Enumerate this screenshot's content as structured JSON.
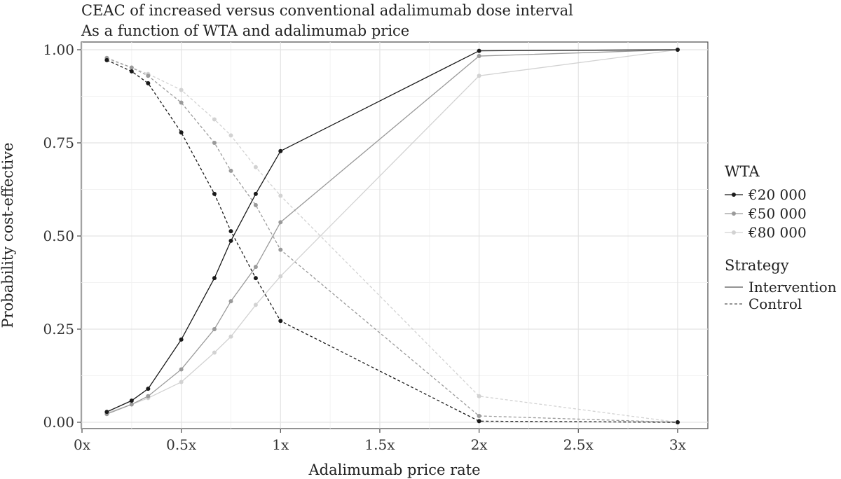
{
  "chart_data": {
    "type": "line",
    "title": "CEAC of increased versus conventional adalimumab dose interval",
    "subtitle": "As a function of WTA and adalimumab price",
    "xlabel": "Adalimumab price rate",
    "ylabel": "Probability cost-effective",
    "xlim": [
      0,
      3.15
    ],
    "ylim": [
      0,
      1
    ],
    "x_ticks": [
      {
        "value": 0,
        "label": "0x"
      },
      {
        "value": 0.5,
        "label": "0.5x"
      },
      {
        "value": 1,
        "label": "1x"
      },
      {
        "value": 1.5,
        "label": "1.5x"
      },
      {
        "value": 2,
        "label": "2x"
      },
      {
        "value": 2.5,
        "label": "2.5x"
      },
      {
        "value": 3,
        "label": "3x"
      }
    ],
    "y_ticks": [
      {
        "value": 0,
        "label": "0.00"
      },
      {
        "value": 0.25,
        "label": "0.25"
      },
      {
        "value": 0.5,
        "label": "0.50"
      },
      {
        "value": 0.75,
        "label": "0.75"
      },
      {
        "value": 1,
        "label": "1.00"
      }
    ],
    "grid": true,
    "legend": {
      "placement": "right",
      "color_title": "WTA",
      "linetype_title": "Strategy",
      "colors": [
        {
          "label": "€20 000",
          "color": "#1a1a1a"
        },
        {
          "label": "€50 000",
          "color": "#9a9a9a"
        },
        {
          "label": "€80 000",
          "color": "#d2d2d2"
        }
      ],
      "linetypes": [
        {
          "label": "Intervention",
          "dash": "solid"
        },
        {
          "label": "Control",
          "dash": "dashed"
        }
      ]
    },
    "x": [
      0.125,
      0.25,
      0.333,
      0.5,
      0.667,
      0.75,
      0.875,
      1,
      2,
      3
    ],
    "series": [
      {
        "wta": "€20 000",
        "strategy": "Intervention",
        "color": "#1a1a1a",
        "dash": "solid",
        "values": [
          0.028,
          0.058,
          0.09,
          0.222,
          0.387,
          0.487,
          0.613,
          0.728,
          0.997,
          1.0
        ]
      },
      {
        "wta": "€20 000",
        "strategy": "Control",
        "color": "#1a1a1a",
        "dash": "dashed",
        "values": [
          0.972,
          0.942,
          0.91,
          0.778,
          0.613,
          0.513,
          0.387,
          0.272,
          0.003,
          0.0
        ]
      },
      {
        "wta": "€50 000",
        "strategy": "Intervention",
        "color": "#9a9a9a",
        "dash": "solid",
        "values": [
          0.022,
          0.048,
          0.07,
          0.142,
          0.25,
          0.325,
          0.417,
          0.537,
          0.983,
          1.0
        ]
      },
      {
        "wta": "€50 000",
        "strategy": "Control",
        "color": "#9a9a9a",
        "dash": "dashed",
        "values": [
          0.978,
          0.952,
          0.93,
          0.858,
          0.75,
          0.675,
          0.583,
          0.463,
          0.017,
          0.0
        ]
      },
      {
        "wta": "€80 000",
        "strategy": "Intervention",
        "color": "#d2d2d2",
        "dash": "solid",
        "values": [
          0.025,
          0.048,
          0.065,
          0.108,
          0.187,
          0.23,
          0.315,
          0.392,
          0.93,
          1.0
        ]
      },
      {
        "wta": "€80 000",
        "strategy": "Control",
        "color": "#d2d2d2",
        "dash": "dashed",
        "values": [
          0.975,
          0.952,
          0.935,
          0.892,
          0.813,
          0.77,
          0.685,
          0.608,
          0.07,
          0.0
        ]
      }
    ]
  }
}
